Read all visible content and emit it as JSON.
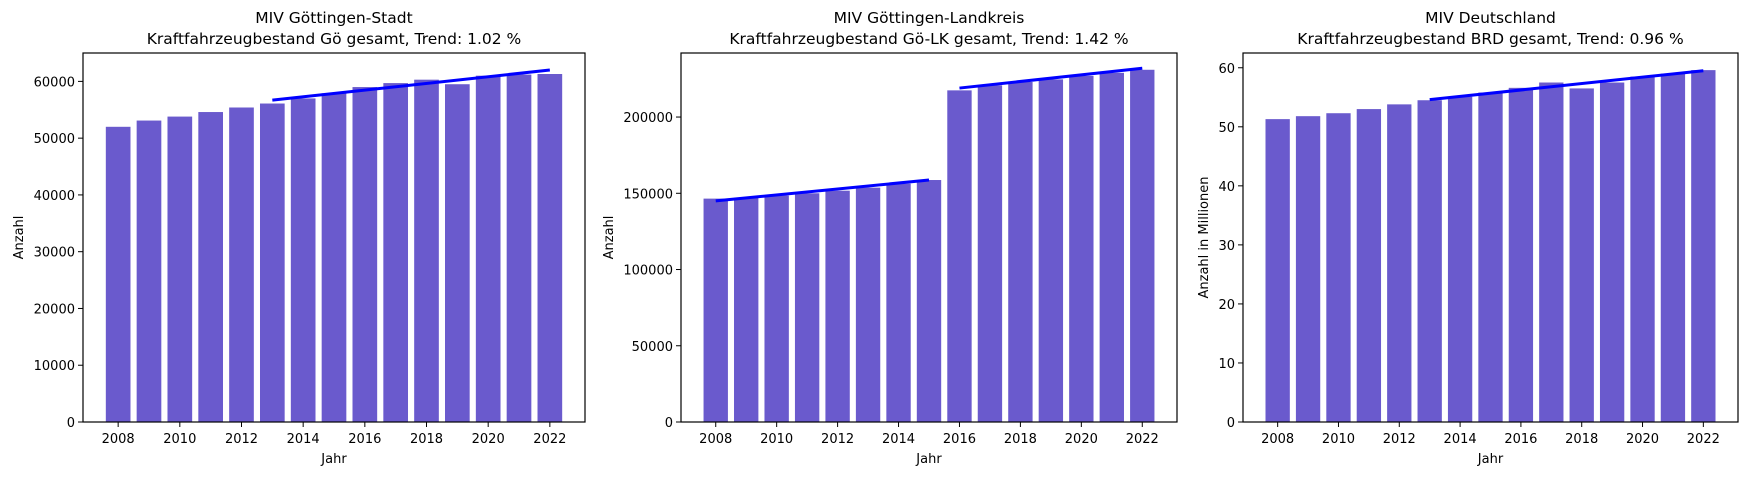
{
  "colors": {
    "bar": "#6a5acd",
    "trend": "#0000ff"
  },
  "chart_data": [
    {
      "type": "bar",
      "title": "MIV Göttingen-Stadt",
      "subtitle": "Kraftfahrzeugbestand Gö gesamt, Trend:  1.02 %",
      "xlabel": "Jahr",
      "ylabel": "Anzahl",
      "ylim": [
        0,
        65000
      ],
      "yticks": [
        0,
        10000,
        20000,
        30000,
        40000,
        50000,
        60000
      ],
      "xticks": [
        2008,
        2010,
        2012,
        2014,
        2016,
        2018,
        2020,
        2022
      ],
      "categories": [
        2008,
        2009,
        2010,
        2011,
        2012,
        2013,
        2014,
        2015,
        2016,
        2017,
        2018,
        2019,
        2020,
        2021,
        2022
      ],
      "values": [
        52000,
        53100,
        53800,
        54600,
        55400,
        56100,
        57000,
        57900,
        59000,
        59700,
        60300,
        59500,
        61000,
        61200,
        61300
      ],
      "trend_lines": [
        {
          "x": [
            2013,
            2022
          ],
          "y": [
            56700,
            62000
          ]
        }
      ]
    },
    {
      "type": "bar",
      "title": "MIV Göttingen-Landkreis",
      "subtitle": "Kraftfahrzeugbestand Gö-LK gesamt, Trend:  1.42 %",
      "xlabel": "Jahr",
      "ylabel": "Anzahl",
      "ylim": [
        0,
        242000
      ],
      "yticks": [
        0,
        50000,
        100000,
        150000,
        200000
      ],
      "xticks": [
        2008,
        2010,
        2012,
        2014,
        2016,
        2018,
        2020,
        2022
      ],
      "categories": [
        2008,
        2009,
        2010,
        2011,
        2012,
        2013,
        2014,
        2015,
        2016,
        2017,
        2018,
        2019,
        2020,
        2021,
        2022
      ],
      "values": [
        146500,
        147000,
        148500,
        150000,
        151700,
        153700,
        156300,
        158700,
        217500,
        220800,
        223000,
        224700,
        227000,
        229000,
        231000
      ],
      "trend_lines": [
        {
          "x": [
            2008,
            2015
          ],
          "y": [
            145000,
            158700
          ]
        },
        {
          "x": [
            2016,
            2022
          ],
          "y": [
            219000,
            232000
          ]
        }
      ]
    },
    {
      "type": "bar",
      "title": "MIV Deutschland",
      "subtitle": "Kraftfahrzeugbestand BRD gesamt, Trend:  0.96 %",
      "xlabel": "Jahr",
      "ylabel": "Anzahl  in Millionen",
      "ylim": [
        0,
        62.5
      ],
      "yticks": [
        0,
        10,
        20,
        30,
        40,
        50,
        60
      ],
      "xticks": [
        2008,
        2010,
        2012,
        2014,
        2016,
        2018,
        2020,
        2022
      ],
      "categories": [
        2008,
        2009,
        2010,
        2011,
        2012,
        2013,
        2014,
        2015,
        2016,
        2017,
        2018,
        2019,
        2020,
        2021,
        2022
      ],
      "values": [
        51.3,
        51.8,
        52.3,
        53.0,
        53.8,
        54.5,
        55.1,
        55.8,
        56.6,
        57.5,
        56.5,
        57.5,
        58.5,
        59.0,
        59.6
      ],
      "trend_lines": [
        {
          "x": [
            2013,
            2022
          ],
          "y": [
            54.6,
            59.5
          ]
        }
      ]
    }
  ]
}
